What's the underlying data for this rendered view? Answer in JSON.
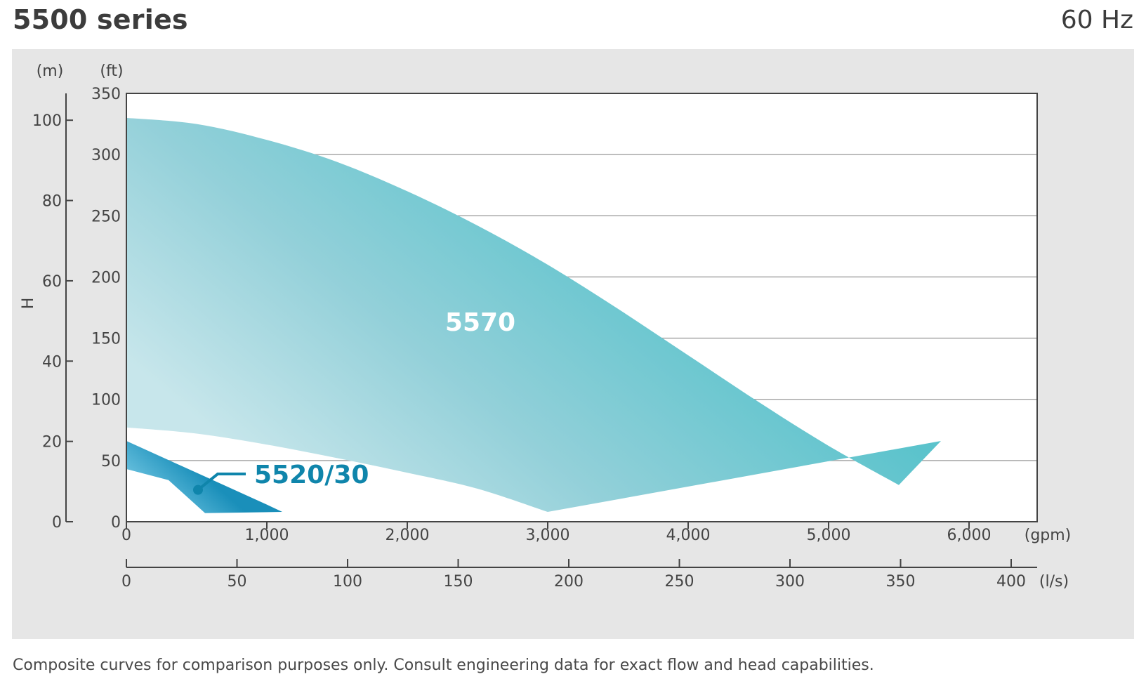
{
  "title": "5500 series",
  "frequency": "60 Hz",
  "footnote": "Composite curves for comparison purposes only. Consult engineering data for exact flow and head capabilities.",
  "chart_data": {
    "type": "area",
    "y_axes": [
      {
        "label": "(m)",
        "ticks": [
          0,
          20,
          40,
          60,
          80,
          100
        ],
        "ylim": [
          0,
          106.68
        ]
      },
      {
        "label": "(ft)",
        "ticks": [
          0,
          50,
          100,
          150,
          200,
          250,
          300,
          350
        ],
        "ylim": [
          0,
          350
        ]
      }
    ],
    "y_axis_title": "H",
    "x_axes": [
      {
        "label": "(gpm)",
        "ticks": [
          0,
          1000,
          2000,
          3000,
          4000,
          5000,
          6000
        ],
        "tick_labels": [
          "0",
          "1,000",
          "2,000",
          "3,000",
          "4,000",
          "5,000",
          "6,000"
        ],
        "xlim": [
          0,
          6480
        ]
      },
      {
        "label": "(l/s)",
        "ticks": [
          0,
          50,
          100,
          150,
          200,
          250,
          300,
          350,
          400
        ],
        "tick_labels": [
          "0",
          "50",
          "100",
          "150",
          "200",
          "250",
          "300",
          "350",
          "400"
        ],
        "xlim": [
          0,
          408.8
        ]
      }
    ],
    "grid": true,
    "series": [
      {
        "name": "5570",
        "color": "#5bc3cc",
        "upper": [
          [
            0,
            330
          ],
          [
            500,
            325
          ],
          [
            1000,
            312
          ],
          [
            1500,
            294
          ],
          [
            2000,
            270
          ],
          [
            2500,
            242
          ],
          [
            3000,
            210
          ],
          [
            3500,
            174
          ],
          [
            4000,
            136
          ],
          [
            4500,
            98
          ],
          [
            5000,
            62
          ],
          [
            5500,
            30
          ],
          [
            5800,
            66
          ]
        ],
        "lower": [
          [
            0,
            77
          ],
          [
            500,
            72
          ],
          [
            1000,
            63
          ],
          [
            1500,
            52
          ],
          [
            2000,
            40
          ],
          [
            2500,
            27
          ],
          [
            3000,
            8
          ],
          [
            3500,
            20
          ],
          [
            4000,
            32
          ],
          [
            4500,
            44
          ],
          [
            5000,
            54
          ],
          [
            5500,
            61
          ],
          [
            5800,
            66
          ]
        ]
      },
      {
        "name": "5520/30",
        "color": "#1e92bd",
        "upper": [
          [
            0,
            66
          ],
          [
            500,
            40
          ],
          [
            1000,
            14
          ],
          [
            1110,
            8
          ]
        ],
        "lower": [
          [
            0,
            43
          ],
          [
            300,
            34
          ],
          [
            560,
            7
          ],
          [
            1110,
            8
          ]
        ]
      }
    ],
    "annotations": [
      {
        "text": "5570",
        "color": "#ffffff"
      },
      {
        "text": "5520/30",
        "color": "#0f85ab"
      }
    ]
  }
}
